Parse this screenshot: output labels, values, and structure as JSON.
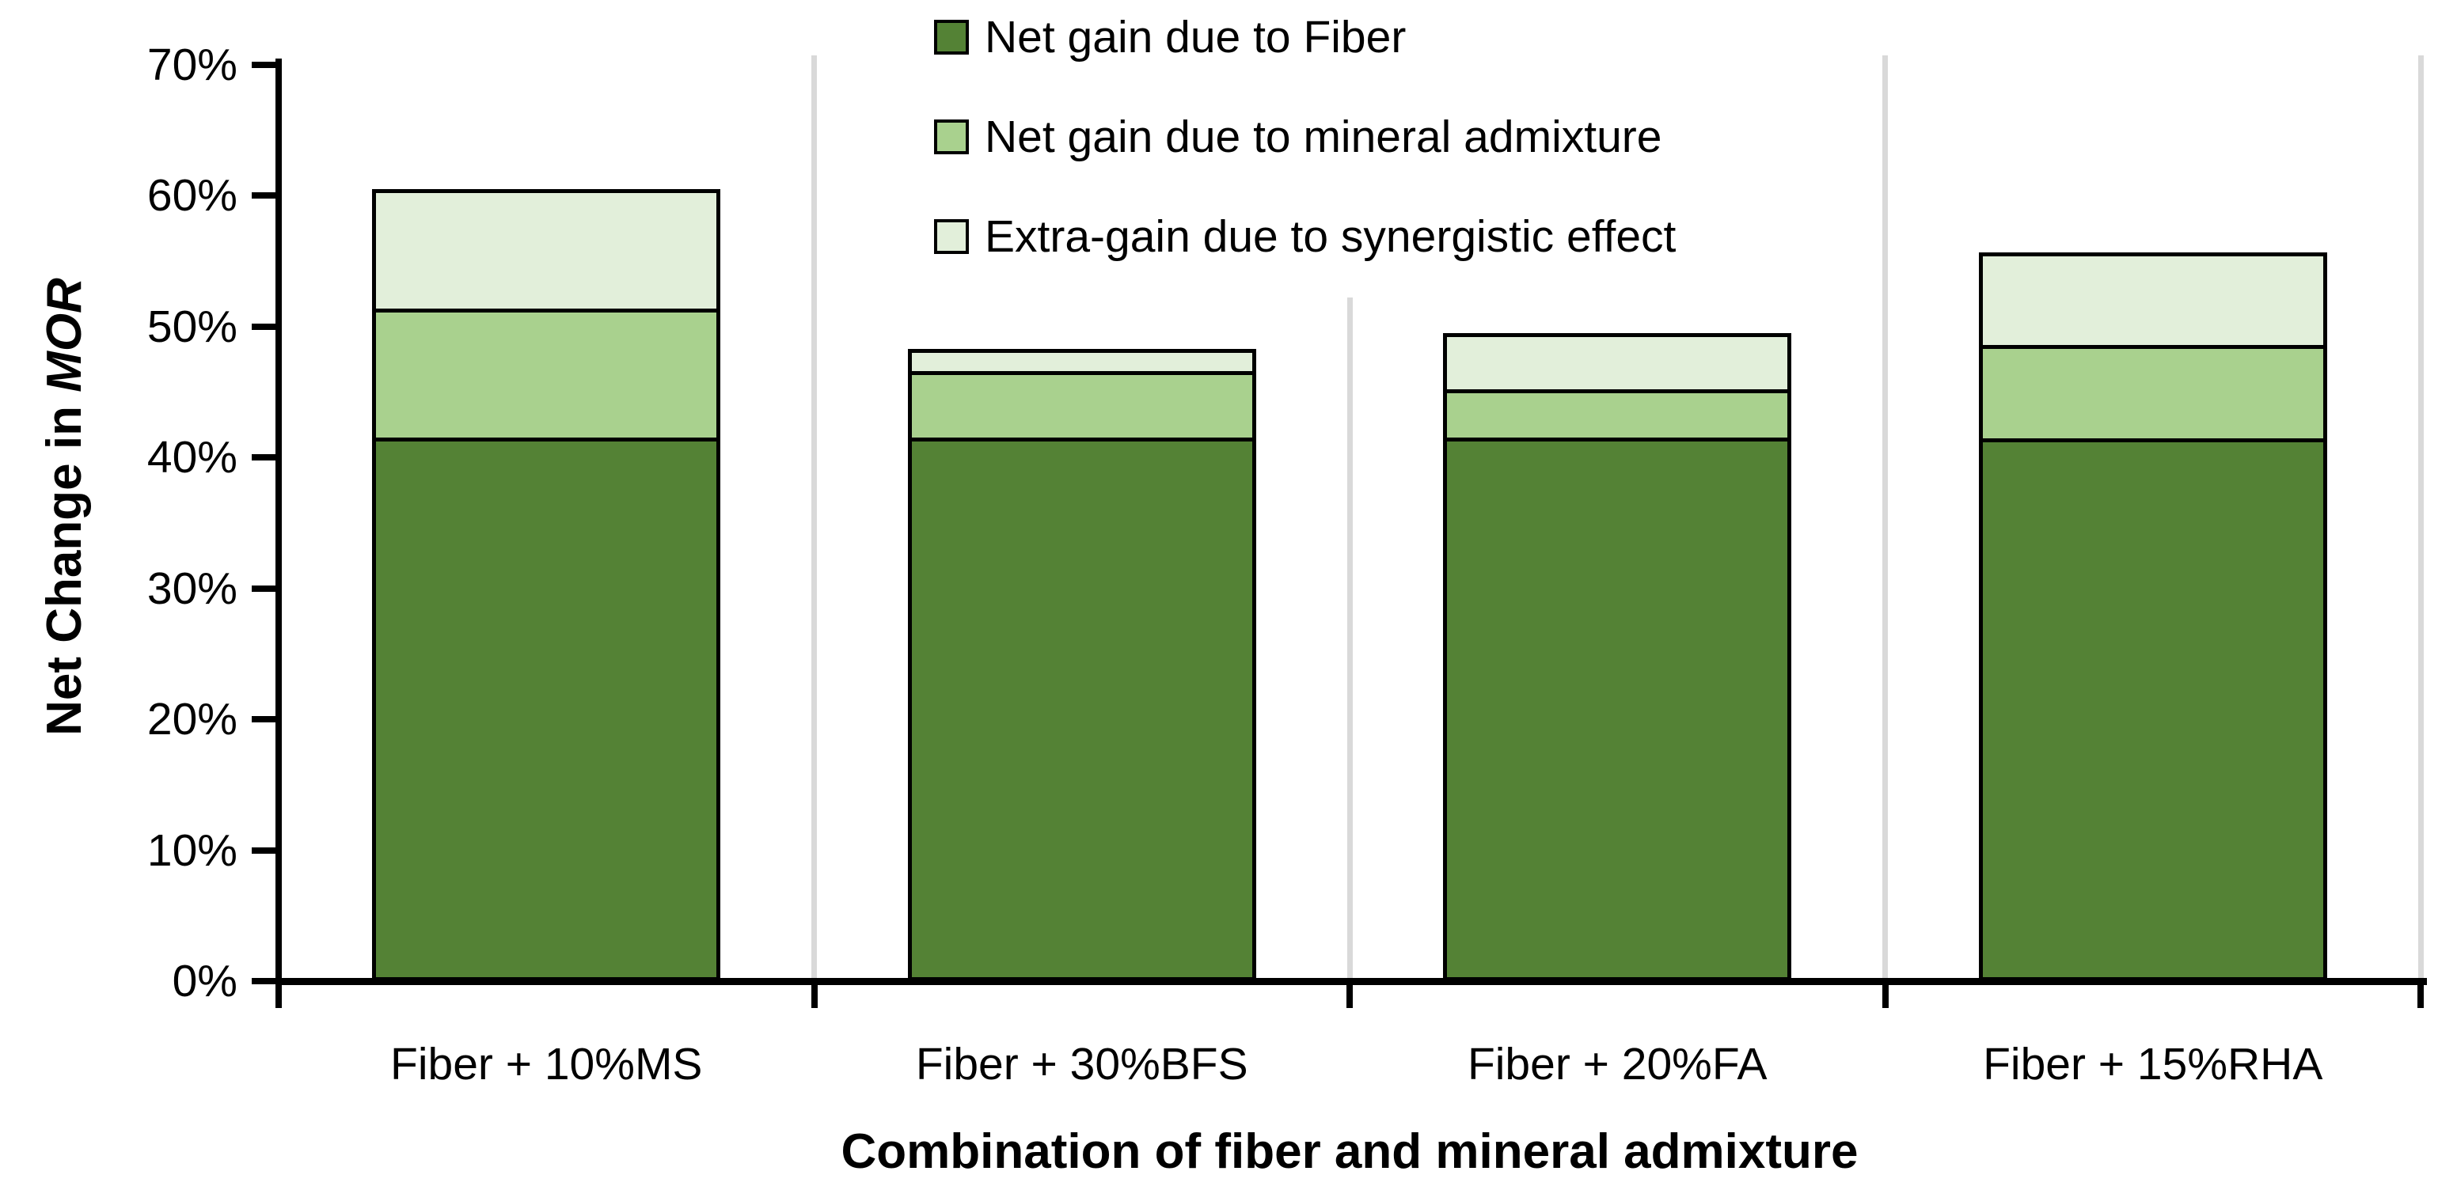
{
  "chart_data": {
    "type": "bar",
    "stacked": true,
    "categories": [
      "Fiber + 10%MS",
      "Fiber + 30%BFS",
      "Fiber + 20%FA",
      "Fiber + 15%RHA"
    ],
    "series": [
      {
        "name": "Net gain due to Fiber",
        "color": "#548235",
        "values": [
          41.5,
          41.5,
          41.5,
          41.5
        ]
      },
      {
        "name": "Net gain due to mineral admixture",
        "color": "#A9D18E",
        "values": [
          9.9,
          5.1,
          3.7,
          7.1
        ]
      },
      {
        "name": "Extra-gain due to synergistic effect",
        "color": "#E2EFDA",
        "values": [
          9.1,
          1.7,
          4.3,
          7.1
        ]
      }
    ],
    "totals_pct": [
      60.5,
      48.3,
      49.5,
      55.7
    ],
    "xlabel": "Combination of fiber and mineral admixture",
    "ylabel": "Net Change in MOR",
    "ylabel_parts": {
      "regular": "Net Change in ",
      "italic": "MOR"
    },
    "ylim": [
      0,
      70
    ],
    "ytick_step": 10,
    "yticks": [
      "0%",
      "10%",
      "20%",
      "30%",
      "40%",
      "50%",
      "60%",
      "70%"
    ],
    "legend_position": "top-center",
    "grid": "vertical-category-separators",
    "colors": {
      "axis": "#000000",
      "gridline": "#D9D9D9",
      "background": "#FFFFFF",
      "bar_border": "#000000"
    }
  }
}
